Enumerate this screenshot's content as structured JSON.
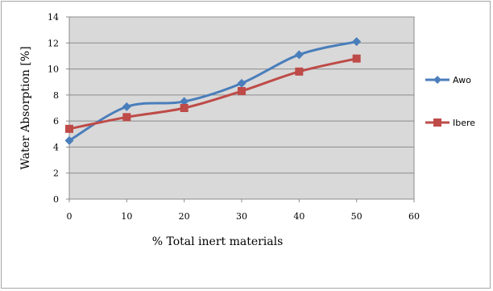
{
  "chart_data": {
    "type": "line",
    "xlabel": "% Total inert materials",
    "ylabel": "Water Absorption [%]",
    "xlim": [
      0,
      60
    ],
    "ylim": [
      0,
      14
    ],
    "xticks": [
      0,
      10,
      20,
      30,
      40,
      50,
      60
    ],
    "yticks": [
      0,
      2,
      4,
      6,
      8,
      10,
      12,
      14
    ],
    "grid": "horizontal",
    "plot_background": "#d9d9d9",
    "legend_placement": "right",
    "smooth": true,
    "series": [
      {
        "name": "Awo",
        "color": "#4a7ebb",
        "marker": "diamond",
        "x": [
          0,
          10,
          20,
          30,
          40,
          50
        ],
        "values": [
          4.5,
          7.1,
          7.5,
          8.9,
          11.1,
          12.1
        ]
      },
      {
        "name": "Ibere",
        "color": "#be4b48",
        "marker": "square",
        "x": [
          0,
          10,
          20,
          30,
          40,
          50
        ],
        "values": [
          5.4,
          6.3,
          7.0,
          8.3,
          9.8,
          10.8
        ]
      }
    ]
  }
}
